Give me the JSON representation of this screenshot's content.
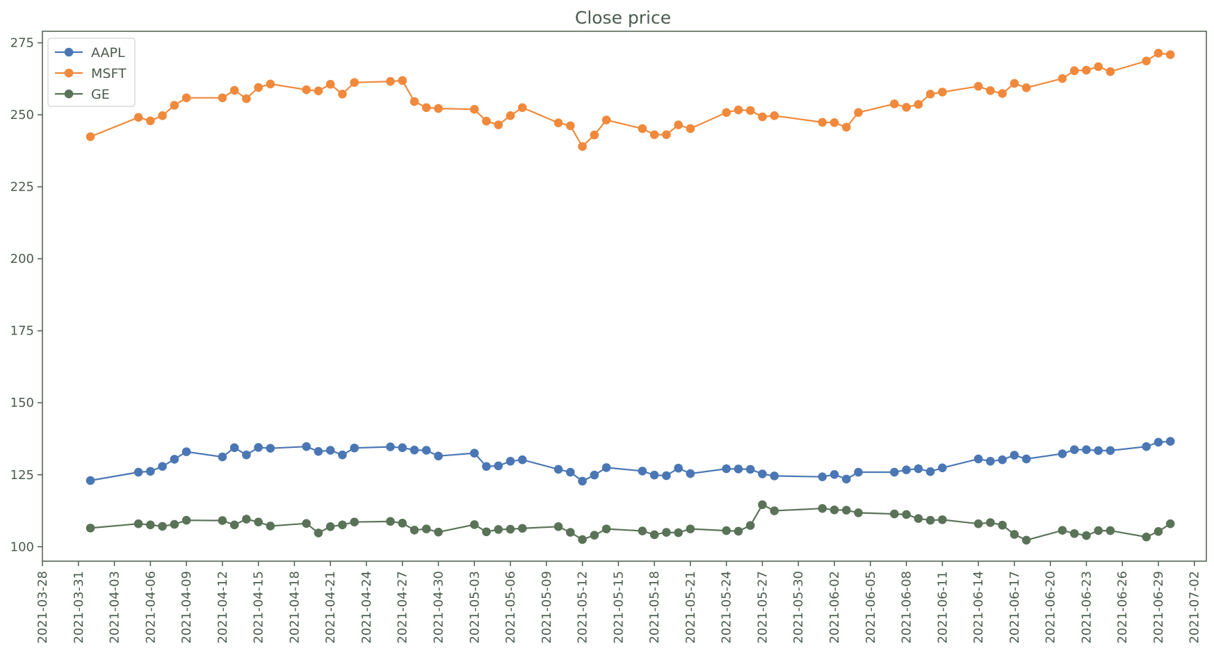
{
  "chart_data": {
    "type": "line",
    "title": "Close price",
    "xlabel": "",
    "ylabel": "",
    "x_axis": "date",
    "xlim": [
      "2021-03-28",
      "2021-07-03"
    ],
    "ylim": [
      95,
      279
    ],
    "yticks": [
      100,
      125,
      150,
      175,
      200,
      225,
      250,
      275
    ],
    "xticks": [
      "2021-03-28",
      "2021-03-31",
      "2021-04-03",
      "2021-04-06",
      "2021-04-09",
      "2021-04-12",
      "2021-04-15",
      "2021-04-18",
      "2021-04-21",
      "2021-04-24",
      "2021-04-27",
      "2021-04-30",
      "2021-05-03",
      "2021-05-06",
      "2021-05-09",
      "2021-05-12",
      "2021-05-15",
      "2021-05-18",
      "2021-05-21",
      "2021-05-24",
      "2021-05-27",
      "2021-05-30",
      "2021-06-02",
      "2021-06-05",
      "2021-06-08",
      "2021-06-11",
      "2021-06-14",
      "2021-06-17",
      "2021-06-20",
      "2021-06-23",
      "2021-06-26",
      "2021-06-29",
      "2021-07-02"
    ],
    "grid": false,
    "legend": "top-left",
    "markers": "circle",
    "x": [
      "2021-04-01",
      "2021-04-05",
      "2021-04-06",
      "2021-04-07",
      "2021-04-08",
      "2021-04-09",
      "2021-04-12",
      "2021-04-13",
      "2021-04-14",
      "2021-04-15",
      "2021-04-16",
      "2021-04-19",
      "2021-04-20",
      "2021-04-21",
      "2021-04-22",
      "2021-04-23",
      "2021-04-26",
      "2021-04-27",
      "2021-04-28",
      "2021-04-29",
      "2021-04-30",
      "2021-05-03",
      "2021-05-04",
      "2021-05-05",
      "2021-05-06",
      "2021-05-07",
      "2021-05-10",
      "2021-05-11",
      "2021-05-12",
      "2021-05-13",
      "2021-05-14",
      "2021-05-17",
      "2021-05-18",
      "2021-05-19",
      "2021-05-20",
      "2021-05-21",
      "2021-05-24",
      "2021-05-25",
      "2021-05-26",
      "2021-05-27",
      "2021-05-28",
      "2021-06-01",
      "2021-06-02",
      "2021-06-03",
      "2021-06-04",
      "2021-06-07",
      "2021-06-08",
      "2021-06-09",
      "2021-06-10",
      "2021-06-11",
      "2021-06-14",
      "2021-06-15",
      "2021-06-16",
      "2021-06-17",
      "2021-06-18",
      "2021-06-21",
      "2021-06-22",
      "2021-06-23",
      "2021-06-24",
      "2021-06-25",
      "2021-06-28",
      "2021-06-29",
      "2021-06-30"
    ],
    "series": [
      {
        "name": "AAPL",
        "color": "#4a77b4",
        "values": [
          123.0,
          125.9,
          126.2,
          127.9,
          130.4,
          133.0,
          131.2,
          134.4,
          131.9,
          134.5,
          134.2,
          134.8,
          133.1,
          133.5,
          131.9,
          134.3,
          134.7,
          134.4,
          133.6,
          133.5,
          131.5,
          132.5,
          127.9,
          128.1,
          129.7,
          130.2,
          126.9,
          125.9,
          122.8,
          124.9,
          127.5,
          126.3,
          124.9,
          124.7,
          127.3,
          125.4,
          127.1,
          127.0,
          126.9,
          125.3,
          124.6,
          124.3,
          125.1,
          123.5,
          125.9,
          125.9,
          126.7,
          127.1,
          126.1,
          127.4,
          130.5,
          129.7,
          130.2,
          131.8,
          130.5,
          132.3,
          133.7,
          133.7,
          133.4,
          133.4,
          134.8,
          136.3,
          136.6
        ]
      },
      {
        "name": "MSFT",
        "color": "#f0893b",
        "values": [
          242.4,
          249.1,
          247.9,
          249.7,
          253.3,
          255.9,
          255.9,
          258.5,
          255.6,
          259.5,
          260.7,
          258.7,
          258.3,
          260.6,
          257.2,
          261.2,
          261.6,
          261.9,
          254.6,
          252.5,
          252.2,
          251.9,
          247.8,
          246.5,
          249.7,
          252.5,
          247.2,
          246.2,
          239.0,
          243.0,
          248.2,
          245.2,
          243.1,
          243.1,
          246.5,
          245.2,
          250.8,
          251.7,
          251.5,
          249.3,
          249.7,
          247.4,
          247.3,
          245.7,
          250.8,
          253.8,
          252.6,
          253.6,
          257.2,
          257.9,
          259.9,
          258.4,
          257.4,
          260.9,
          259.4,
          262.6,
          265.3,
          265.5,
          266.7,
          265.0,
          268.7,
          271.4,
          270.9
        ]
      },
      {
        "name": "GE",
        "color": "#5a7358",
        "values": [
          106.5,
          108.0,
          107.6,
          107.1,
          107.8,
          109.2,
          109.1,
          107.6,
          109.6,
          108.6,
          107.2,
          108.1,
          104.8,
          107.0,
          107.6,
          108.6,
          108.8,
          108.2,
          105.8,
          106.2,
          105.1,
          107.7,
          105.2,
          106.0,
          106.1,
          106.4,
          107.0,
          105.0,
          102.5,
          104.0,
          106.2,
          105.5,
          104.2,
          105.0,
          104.9,
          106.2,
          105.6,
          105.4,
          107.4,
          114.6,
          112.5,
          113.3,
          112.8,
          112.7,
          111.8,
          111.4,
          111.2,
          109.8,
          109.2,
          109.4,
          108.0,
          108.4,
          107.5,
          104.3,
          102.3,
          105.7,
          104.6,
          103.9,
          105.6,
          105.6,
          103.4,
          105.3,
          108.0
        ]
      }
    ]
  }
}
